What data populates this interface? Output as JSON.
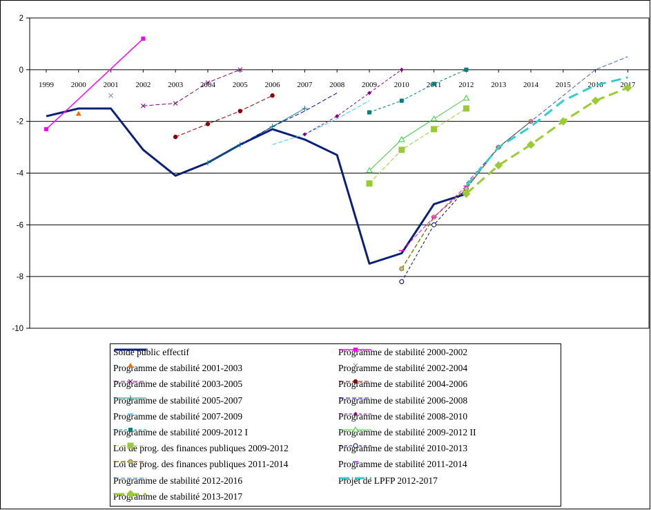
{
  "chart_data": {
    "type": "line",
    "title": "",
    "xlabel": "",
    "ylabel": "",
    "ylim": [
      -10,
      2
    ],
    "yticks": [
      2,
      0,
      -2,
      -4,
      -6,
      -8,
      -10
    ],
    "categories": [
      "1999",
      "2000",
      "2001",
      "2002",
      "2003",
      "2004",
      "2005",
      "2006",
      "2007",
      "2008",
      "2009",
      "2010",
      "2011",
      "2012",
      "2013",
      "2014",
      "2015",
      "2016",
      "2017"
    ],
    "grid": "horizontal",
    "legend_position": "bottom",
    "series": [
      {
        "name": "Solde public effectif",
        "color": "#0a1f78",
        "dash": "solid",
        "width": 3,
        "marker": "none",
        "legend_marker": "none",
        "points": [
          [
            1999,
            -1.8
          ],
          [
            2000,
            -1.5
          ],
          [
            2001,
            -1.5
          ],
          [
            2002,
            -3.1
          ],
          [
            2003,
            -4.1
          ],
          [
            2004,
            -3.6
          ],
          [
            2005,
            -2.9
          ],
          [
            2006,
            -2.3
          ],
          [
            2007,
            -2.7
          ],
          [
            2008,
            -3.3
          ],
          [
            2009,
            -7.5
          ],
          [
            2010,
            -7.1
          ],
          [
            2011,
            -5.2
          ],
          [
            2012,
            -4.8
          ]
        ]
      },
      {
        "name": "Programme de stabilité 2000-2002",
        "color": "#ff00ff",
        "dash": "solid",
        "width": 1.5,
        "marker": "square",
        "legend_marker": "square",
        "points": [
          [
            1999,
            -2.3
          ],
          [
            2002,
            1.2
          ]
        ]
      },
      {
        "name": "Programme de stabilité 2001-2003",
        "color": "#ff6600",
        "dash": "solid",
        "width": 1.5,
        "marker": "triangle",
        "legend_marker": "triangle",
        "points": [
          [
            2000,
            -1.7
          ]
        ]
      },
      {
        "name": "Programme de stabilité 2002-2004",
        "color": "#888888",
        "dash": "solid",
        "width": 1,
        "marker": "x",
        "legend_marker": "x",
        "points": [
          [
            2001,
            -1.0
          ]
        ]
      },
      {
        "name": "Programme de stabilité 2003-2005",
        "color": "#800080",
        "dash": "6,3",
        "width": 1,
        "marker": "x",
        "legend_marker": "x",
        "points": [
          [
            2002,
            -1.4
          ],
          [
            2003,
            -1.3
          ],
          [
            2004,
            -0.5
          ],
          [
            2005,
            0.0
          ]
        ]
      },
      {
        "name": "Programme de stabilité 2004-2006",
        "color": "#8b0000",
        "dash": "6,3",
        "width": 1,
        "marker": "circle",
        "legend_marker": "circle",
        "points": [
          [
            2003,
            -2.6
          ],
          [
            2004,
            -2.1
          ],
          [
            2005,
            -1.6
          ],
          [
            2006,
            -1.0
          ]
        ]
      },
      {
        "name": "Programme de stabilité 2005-2007",
        "color": "#008080",
        "dash": "solid",
        "width": 1,
        "marker": "plus",
        "legend_marker": "plus",
        "points": [
          [
            2004,
            -3.6
          ],
          [
            2005,
            -2.9
          ],
          [
            2006,
            -2.2
          ],
          [
            2007,
            -1.5
          ]
        ]
      },
      {
        "name": "Programme de stabilité 2006-2008",
        "color": "#0000cc",
        "dash": "6,3",
        "width": 1,
        "marker": "none",
        "legend_marker": "none",
        "points": [
          [
            2005,
            -2.9
          ],
          [
            2006,
            -2.2
          ],
          [
            2007,
            -1.6
          ],
          [
            2008,
            -0.9
          ]
        ]
      },
      {
        "name": "Programme de stabilité 2007-2009",
        "color": "#33ccff",
        "dash": "6,3",
        "width": 1,
        "marker": "none",
        "legend_marker": "dash",
        "points": [
          [
            2006,
            -2.9
          ],
          [
            2007,
            -2.5
          ],
          [
            2008,
            -1.9
          ],
          [
            2009,
            -1.2
          ]
        ]
      },
      {
        "name": "Programme de stabilité 2008-2010",
        "color": "#800080",
        "dash": "4,3",
        "width": 1,
        "marker": "diamond",
        "legend_marker": "diamond",
        "points": [
          [
            2007,
            -2.5
          ],
          [
            2008,
            -1.8
          ],
          [
            2009,
            -0.9
          ],
          [
            2010,
            0.0
          ]
        ]
      },
      {
        "name": "Programme de stabilité 2009-2012 I",
        "color": "#008080",
        "dash": "4,3",
        "width": 1,
        "marker": "square",
        "legend_marker": "square",
        "points": [
          [
            2009,
            -1.65
          ],
          [
            2010,
            -1.2
          ],
          [
            2011,
            -0.55
          ],
          [
            2012,
            0.0
          ]
        ]
      },
      {
        "name": "Programme de stabilité 2009-2012 II",
        "color": "#33cc33",
        "dash": "solid",
        "width": 1,
        "marker": "triangle-open",
        "legend_marker": "triangle-open",
        "points": [
          [
            2009,
            -3.9
          ],
          [
            2010,
            -2.7
          ],
          [
            2011,
            -1.9
          ],
          [
            2012,
            -1.1
          ]
        ]
      },
      {
        "name": "Loi de prog. des finances publiques 2009-2012",
        "color": "#99cc33",
        "dash": "6,3",
        "width": 1,
        "marker": "square-big",
        "legend_marker": "square-big",
        "points": [
          [
            2009,
            -4.4
          ],
          [
            2010,
            -3.1
          ],
          [
            2011,
            -2.3
          ],
          [
            2012,
            -1.5
          ]
        ]
      },
      {
        "name": "Programme de stabilité 2010-2013",
        "color": "#000080",
        "dash": "4,3",
        "width": 1,
        "marker": "circle-open",
        "legend_marker": "circle-open",
        "points": [
          [
            2010,
            -8.2
          ],
          [
            2011,
            -6.0
          ],
          [
            2012,
            -4.6
          ],
          [
            2013,
            -3.0
          ]
        ]
      },
      {
        "name": "Loi de prog. des finances publiques 2011-2014",
        "color": "#808000",
        "dash": "6,3",
        "width": 1.5,
        "marker": "circle-small",
        "legend_marker": "circle-small",
        "points": [
          [
            2010,
            -7.7
          ],
          [
            2011,
            -5.7
          ],
          [
            2012,
            -4.6
          ],
          [
            2013,
            -3.0
          ],
          [
            2014,
            -2.0
          ]
        ]
      },
      {
        "name": "Programme de stabilité 2011-2014",
        "color": "#ff00ff",
        "dash": "6,3",
        "width": 1,
        "marker": "dash",
        "legend_marker": "dash",
        "points": [
          [
            2010,
            -7.0
          ],
          [
            2011,
            -5.7
          ],
          [
            2012,
            -4.5
          ],
          [
            2013,
            -3.0
          ],
          [
            2014,
            -2.0
          ]
        ]
      },
      {
        "name": "Programme de stabilité 2012-2016",
        "color": "#3366cc",
        "dash": "6,3",
        "width": 1,
        "marker": "none",
        "legend_marker": "none",
        "points": [
          [
            2012,
            -4.4
          ],
          [
            2013,
            -3.0
          ],
          [
            2014,
            -2.0
          ],
          [
            2015,
            -1.0
          ],
          [
            2016,
            0.0
          ],
          [
            2017,
            0.5
          ]
        ]
      },
      {
        "name": "Projet de LPFP 2012-2017",
        "color": "#33cccc",
        "dash": "14,8",
        "width": 3,
        "marker": "none",
        "legend_marker": "none",
        "points": [
          [
            2012,
            -4.5
          ],
          [
            2013,
            -3.0
          ],
          [
            2014,
            -2.2
          ],
          [
            2015,
            -1.2
          ],
          [
            2016,
            -0.6
          ],
          [
            2017,
            -0.3
          ]
        ]
      },
      {
        "name": "Programme de stabilité 2013-2017",
        "color": "#99cc33",
        "dash": "14,7",
        "width": 3,
        "marker": "diamond-big",
        "legend_marker": "diamond-big",
        "points": [
          [
            2012,
            -4.8
          ],
          [
            2013,
            -3.7
          ],
          [
            2014,
            -2.9
          ],
          [
            2015,
            -2.0
          ],
          [
            2016,
            -1.2
          ],
          [
            2017,
            -0.7
          ]
        ]
      }
    ]
  }
}
